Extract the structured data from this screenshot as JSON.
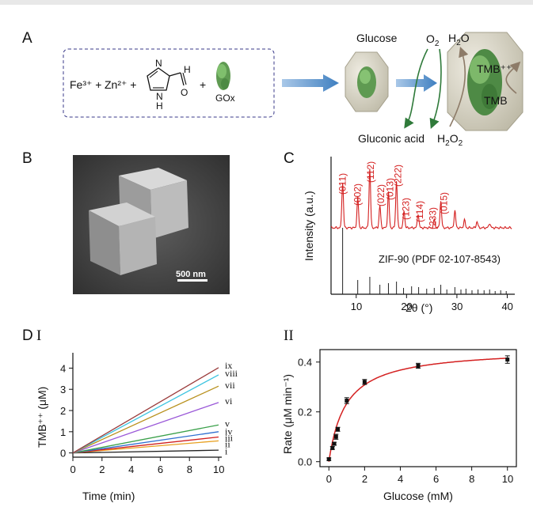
{
  "panels": {
    "A": {
      "label": "A",
      "reagents": [
        "Fe³⁺ +",
        "Zn²⁺ +",
        "+"
      ],
      "aldehyde_H": "H",
      "aldehyde_O": "O",
      "ring_N": "N",
      "ring_NH": "N",
      "ring_H": "H",
      "gox_label": "GOx",
      "glucose": "Glucose",
      "o2": "O",
      "o2_sub": "2",
      "h2o": "H",
      "h2o_sub": "2",
      "h2o_o": "O",
      "tmb_ox": "TMB⁺⁺",
      "tmb": "TMB",
      "gluconic": "Gluconic acid",
      "h2o2_a": "H",
      "h2o2_sub1": "2",
      "h2o2_b": "O",
      "h2o2_sub2": "2"
    },
    "B": {
      "label": "B",
      "scalebar": "500 nm"
    },
    "C": {
      "label": "C",
      "ylabel": "Intensity (a.u.)",
      "xlabel": "2θ (°)",
      "reference": "ZIF-90 (PDF 02-107-8543)",
      "peak_labels": [
        "(011)",
        "(002)",
        "(112)",
        "(022)",
        "(013)",
        "(222)",
        "(123)",
        "(114)",
        "(233)",
        "(015)"
      ],
      "xticks": [
        "10",
        "20",
        "30",
        "40"
      ]
    },
    "D": {
      "label": "D",
      "sub1": "I",
      "sub2": "II"
    }
  },
  "chart_data": [
    {
      "type": "line",
      "xlabel": "Time (min)",
      "ylabel": "TMB⁺⁺ (μM)",
      "xlim": [
        0,
        10
      ],
      "ylim": [
        -0.2,
        4.5
      ],
      "xticks": [
        "0",
        "2",
        "4",
        "6",
        "8",
        "10"
      ],
      "yticks": [
        "0",
        "1",
        "2",
        "3",
        "4"
      ],
      "series": [
        {
          "name": "i",
          "x": [
            0,
            10
          ],
          "y": [
            0,
            0.13
          ],
          "color": "#222222"
        },
        {
          "name": "ii",
          "x": [
            0,
            10
          ],
          "y": [
            0,
            0.57
          ],
          "color": "#e8a020"
        },
        {
          "name": "iii",
          "x": [
            0,
            10
          ],
          "y": [
            0,
            0.75
          ],
          "color": "#d02020"
        },
        {
          "name": "iv",
          "x": [
            0,
            10
          ],
          "y": [
            0,
            1.0
          ],
          "color": "#2f6fd0"
        },
        {
          "name": "v",
          "x": [
            0,
            10
          ],
          "y": [
            0,
            1.32
          ],
          "color": "#3aa04a"
        },
        {
          "name": "vi",
          "x": [
            0,
            10
          ],
          "y": [
            0,
            2.38
          ],
          "color": "#9a58d8"
        },
        {
          "name": "vii",
          "x": [
            0,
            10
          ],
          "y": [
            0,
            3.15
          ],
          "color": "#b8901c"
        },
        {
          "name": "viii",
          "x": [
            0,
            10
          ],
          "y": [
            0,
            3.68
          ],
          "color": "#3cc4e0"
        },
        {
          "name": "ix",
          "x": [
            0,
            10
          ],
          "y": [
            0,
            4.02
          ],
          "color": "#9a3a3a"
        }
      ]
    },
    {
      "type": "scatter",
      "xlabel": "Glucose (mM)",
      "ylabel": "Rate (μM min⁻¹)",
      "xlim": [
        -0.5,
        10.5
      ],
      "ylim": [
        -0.02,
        0.45
      ],
      "xticks": [
        "0",
        "2",
        "4",
        "6",
        "8",
        "10"
      ],
      "yticks": [
        "0.0",
        "0.2",
        "0.4"
      ],
      "points": {
        "x": [
          0,
          0.2,
          0.3,
          0.4,
          0.5,
          1,
          2,
          5,
          10
        ],
        "y": [
          0.01,
          0.055,
          0.072,
          0.1,
          0.13,
          0.245,
          0.32,
          0.385,
          0.41
        ],
        "err": [
          0.005,
          0.006,
          0.006,
          0.01,
          0.008,
          0.012,
          0.01,
          0.01,
          0.015
        ]
      },
      "fit": {
        "vmax": 0.455,
        "km": 0.95,
        "color": "#d42020"
      }
    }
  ]
}
